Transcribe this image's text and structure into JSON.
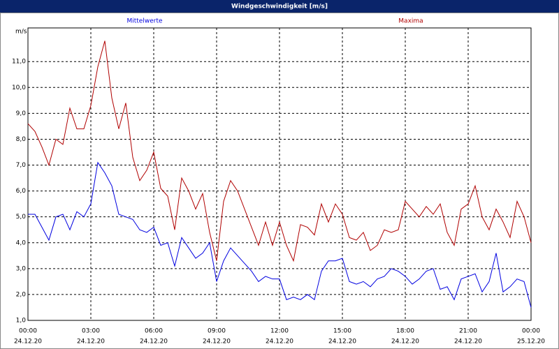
{
  "chart_data": {
    "type": "line",
    "title": "Windgeschwindigkeit [m/s]",
    "y_unit": "m/s",
    "x": [
      0,
      20,
      40,
      60,
      80,
      100,
      120,
      140,
      160,
      180,
      200,
      220,
      240,
      260,
      280,
      300,
      320,
      340,
      360,
      380,
      400,
      420,
      440,
      460,
      480,
      500,
      520,
      540,
      560,
      580,
      600,
      620,
      640,
      660,
      680,
      700,
      720,
      740,
      760,
      780,
      800,
      820,
      840,
      860,
      880,
      900,
      920,
      940,
      960,
      980,
      1000,
      1020,
      1040,
      1060,
      1080,
      1100,
      1120,
      1140,
      1160,
      1180,
      1200,
      1220,
      1240,
      1260,
      1280,
      1300,
      1320,
      1340,
      1360,
      1380,
      1400,
      1420,
      1440
    ],
    "series": [
      {
        "name": "Mittelwerte",
        "color": "#0000e0",
        "values": [
          5.1,
          5.1,
          4.6,
          4.1,
          5.0,
          5.1,
          4.5,
          5.2,
          5.0,
          5.5,
          7.1,
          6.7,
          6.2,
          5.1,
          5.0,
          4.9,
          4.5,
          4.4,
          4.6,
          3.9,
          4.0,
          3.1,
          4.2,
          3.8,
          3.4,
          3.6,
          4.0,
          2.5,
          3.3,
          3.8,
          3.5,
          3.2,
          2.9,
          2.5,
          2.7,
          2.6,
          2.6,
          1.8,
          1.9,
          1.8,
          2.0,
          1.8,
          2.9,
          3.3,
          3.3,
          3.4,
          2.5,
          2.4,
          2.5,
          2.3,
          2.6,
          2.7,
          3.0,
          2.9,
          2.7,
          2.4,
          2.6,
          2.9,
          3.0,
          2.2,
          2.3,
          1.8,
          2.6,
          2.7,
          2.8,
          2.1,
          2.5,
          3.6,
          2.1,
          2.3,
          2.6,
          2.5,
          1.5
        ]
      },
      {
        "name": "Maxima",
        "color": "#b00000",
        "values": [
          8.6,
          8.3,
          7.7,
          7.0,
          8.0,
          7.8,
          9.2,
          8.4,
          8.4,
          9.3,
          10.8,
          11.8,
          9.6,
          8.4,
          9.4,
          7.3,
          6.4,
          6.8,
          7.5,
          6.1,
          5.8,
          4.5,
          6.5,
          6.0,
          5.3,
          5.9,
          4.4,
          3.3,
          5.6,
          6.4,
          6.0,
          5.3,
          4.6,
          3.9,
          4.8,
          3.9,
          4.8,
          3.9,
          3.3,
          4.7,
          4.6,
          4.3,
          5.5,
          4.8,
          5.5,
          5.1,
          4.2,
          4.1,
          4.4,
          3.7,
          3.9,
          4.5,
          4.4,
          4.5,
          5.6,
          5.3,
          5.0,
          5.4,
          5.1,
          5.5,
          4.4,
          3.9,
          5.3,
          5.5,
          6.2,
          5.0,
          4.5,
          5.3,
          4.8,
          4.2,
          5.6,
          5.0,
          4.0
        ]
      }
    ],
    "xlim": [
      0,
      1440
    ],
    "xticks": [
      {
        "value": 0,
        "label": "00:00"
      },
      {
        "value": 180,
        "label": "03:00"
      },
      {
        "value": 360,
        "label": "06:00"
      },
      {
        "value": 540,
        "label": "09:00"
      },
      {
        "value": 720,
        "label": "12:00"
      },
      {
        "value": 900,
        "label": "15:00"
      },
      {
        "value": 1080,
        "label": "18:00"
      },
      {
        "value": 1260,
        "label": "21:00"
      },
      {
        "value": 1440,
        "label": "00:00"
      }
    ],
    "xtick_dates": [
      "24.12.20",
      "24.12.20",
      "24.12.20",
      "24.12.20",
      "24.12.20",
      "24.12.20",
      "24.12.20",
      "24.12.20",
      "25.12.20"
    ],
    "ylim": [
      1,
      12.3
    ],
    "yticks": [
      {
        "value": 1,
        "label": "1,0"
      },
      {
        "value": 2,
        "label": "2,0"
      },
      {
        "value": 3,
        "label": "3,0"
      },
      {
        "value": 4,
        "label": "4,0"
      },
      {
        "value": 5,
        "label": "5,0"
      },
      {
        "value": 6,
        "label": "6,0"
      },
      {
        "value": 7,
        "label": "7,0"
      },
      {
        "value": 8,
        "label": "8,0"
      },
      {
        "value": 9,
        "label": "9,0"
      },
      {
        "value": 10,
        "label": "10,0"
      },
      {
        "value": 11,
        "label": "11,0"
      }
    ],
    "grid": true
  }
}
